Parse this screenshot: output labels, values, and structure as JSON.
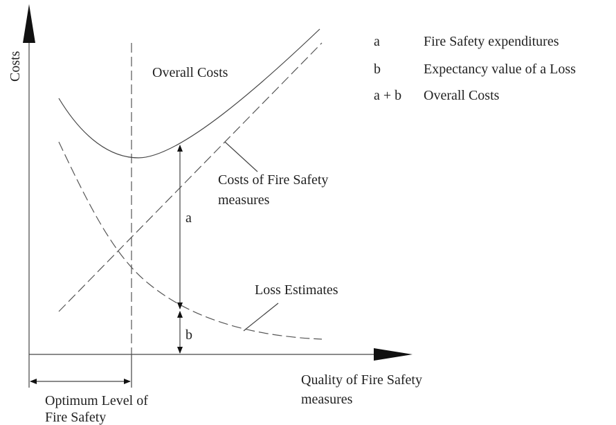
{
  "axes": {
    "y_label": "Costs",
    "x_label": [
      "Quality of Fire Safety",
      "measures"
    ]
  },
  "labels": {
    "overall_costs": "Overall Costs",
    "costs_of_fire_safety_measures": [
      "Costs of Fire Safety",
      "measures"
    ],
    "loss_estimates": "Loss Estimates",
    "a": "a",
    "b": "b",
    "optimum": [
      "Optimum Level of",
      "Fire Safety"
    ]
  },
  "legend": [
    {
      "key": "a",
      "text": "Fire Safety expenditures"
    },
    {
      "key": "b",
      "text": "Expectancy value of a Loss"
    },
    {
      "key": "a + b",
      "text": "Overall Costs"
    }
  ]
}
